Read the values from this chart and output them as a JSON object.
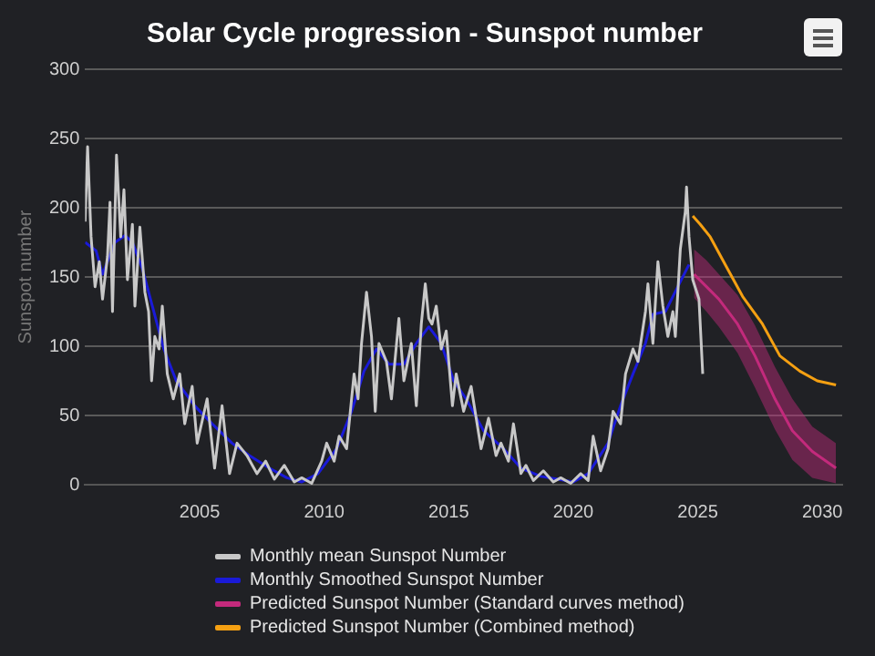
{
  "chart_data": {
    "type": "line",
    "title": "Solar Cycle progression - Sunspot number",
    "ylabel": "Sunspot number",
    "xlim": [
      2000.4,
      2030.8
    ],
    "xticks": [
      2005,
      2010,
      2015,
      2020,
      2025,
      2030
    ],
    "ylim": [
      0,
      300
    ],
    "yticks": [
      0,
      50,
      100,
      150,
      200,
      250,
      300
    ],
    "grid": "y",
    "legend": "bottom",
    "series": [
      {
        "name": "Monthly mean Sunspot Number",
        "color": "#c8c8c8",
        "x": [
          2000.4,
          2000.5,
          2000.64,
          2000.8,
          2000.97,
          2001.1,
          2001.3,
          2001.4,
          2001.5,
          2001.66,
          2001.83,
          2001.96,
          2002.1,
          2002.3,
          2002.4,
          2002.6,
          2002.8,
          2002.95,
          2003.07,
          2003.2,
          2003.37,
          2003.5,
          2003.7,
          2003.94,
          2004.2,
          2004.4,
          2004.7,
          2004.9,
          2005.3,
          2005.6,
          2005.9,
          2006.2,
          2006.5,
          2006.9,
          2007.3,
          2007.65,
          2008.0,
          2008.4,
          2008.8,
          2009.1,
          2009.5,
          2009.9,
          2010.1,
          2010.4,
          2010.6,
          2010.9,
          2011.2,
          2011.36,
          2011.5,
          2011.7,
          2011.9,
          2012.05,
          2012.2,
          2012.5,
          2012.7,
          2013.0,
          2013.2,
          2013.5,
          2013.7,
          2013.9,
          2014.06,
          2014.2,
          2014.33,
          2014.5,
          2014.7,
          2014.9,
          2015.15,
          2015.3,
          2015.6,
          2015.9,
          2016.3,
          2016.6,
          2016.9,
          2017.1,
          2017.4,
          2017.6,
          2017.9,
          2018.1,
          2018.4,
          2018.8,
          2019.2,
          2019.5,
          2019.9,
          2020.3,
          2020.6,
          2020.8,
          2021.1,
          2021.4,
          2021.6,
          2021.9,
          2022.1,
          2022.4,
          2022.6,
          2022.9,
          2023.0,
          2023.2,
          2023.4,
          2023.6,
          2023.8,
          2024.0,
          2024.1,
          2024.3,
          2024.5,
          2024.55,
          2024.65,
          2024.8,
          2025.05,
          2025.2
        ],
        "values": [
          190,
          244,
          179,
          143,
          161,
          134,
          165,
          204,
          125,
          238,
          179,
          213,
          148,
          188,
          129,
          186,
          139,
          125,
          75,
          107,
          98,
          129,
          80,
          62,
          80,
          44,
          71,
          30,
          62,
          12,
          57,
          8,
          30,
          21,
          8,
          17,
          4,
          14,
          2,
          5,
          1,
          17,
          30,
          17,
          35,
          26,
          80,
          62,
          102,
          139,
          107,
          53,
          102,
          89,
          62,
          120,
          75,
          102,
          57,
          116,
          145,
          120,
          116,
          129,
          98,
          111,
          57,
          80,
          53,
          71,
          26,
          48,
          21,
          30,
          17,
          44,
          8,
          14,
          3,
          10,
          2,
          5,
          1,
          8,
          3,
          35,
          10,
          26,
          53,
          44,
          80,
          98,
          89,
          125,
          145,
          102,
          161,
          129,
          107,
          125,
          107,
          170,
          197,
          215,
          179,
          148,
          134,
          80
        ]
      },
      {
        "name": "Monthly Smoothed Sunspot Number",
        "color": "#1a1ad8",
        "x": [
          2000.4,
          2000.84,
          2001.1,
          2001.6,
          2002.0,
          2002.3,
          2002.7,
          2003.1,
          2003.56,
          2004.06,
          2004.8,
          2005.5,
          2006.3,
          2007.0,
          2007.8,
          2008.5,
          2009.1,
          2009.75,
          2010.5,
          2011.1,
          2011.6,
          2012.1,
          2012.6,
          2013.2,
          2013.7,
          2014.2,
          2014.7,
          2015.2,
          2015.7,
          2016.4,
          2017.2,
          2017.9,
          2018.7,
          2019.4,
          2020.0,
          2020.6,
          2021.4,
          2021.9,
          2022.4,
          2022.9,
          2023.2,
          2023.7,
          2024.2,
          2024.65
        ],
        "values": [
          175,
          169,
          152,
          175,
          180,
          175,
          156,
          129,
          98,
          75,
          57,
          44,
          30,
          21,
          12,
          5,
          2,
          8,
          26,
          53,
          82,
          98,
          87,
          87,
          102,
          114,
          102,
          75,
          62,
          39,
          26,
          12,
          6,
          4,
          2,
          8,
          30,
          57,
          80,
          102,
          123,
          125,
          143,
          159
        ]
      },
      {
        "name": "Predicted Sunspot Number (Standard curves method)",
        "color": "#c42a7c",
        "x": [
          2024.85,
          2025.35,
          2025.85,
          2026.6,
          2027.3,
          2028.1,
          2028.8,
          2029.6,
          2030.55
        ],
        "values": [
          152,
          143,
          134,
          116,
          93,
          62,
          39,
          24,
          12
        ],
        "lower": [
          135,
          125,
          114,
          95,
          70,
          40,
          18,
          5,
          1
        ],
        "upper": [
          170,
          162,
          152,
          137,
          115,
          85,
          62,
          42,
          30
        ]
      },
      {
        "name": "Predicted Sunspot Number (Combined method)",
        "color": "#f5a012",
        "x": [
          2024.8,
          2025.1,
          2025.5,
          2026.1,
          2026.8,
          2027.6,
          2028.3,
          2029.1,
          2029.8,
          2030.55
        ],
        "values": [
          194,
          188,
          179,
          159,
          136,
          116,
          93,
          82,
          75,
          72
        ]
      }
    ]
  }
}
